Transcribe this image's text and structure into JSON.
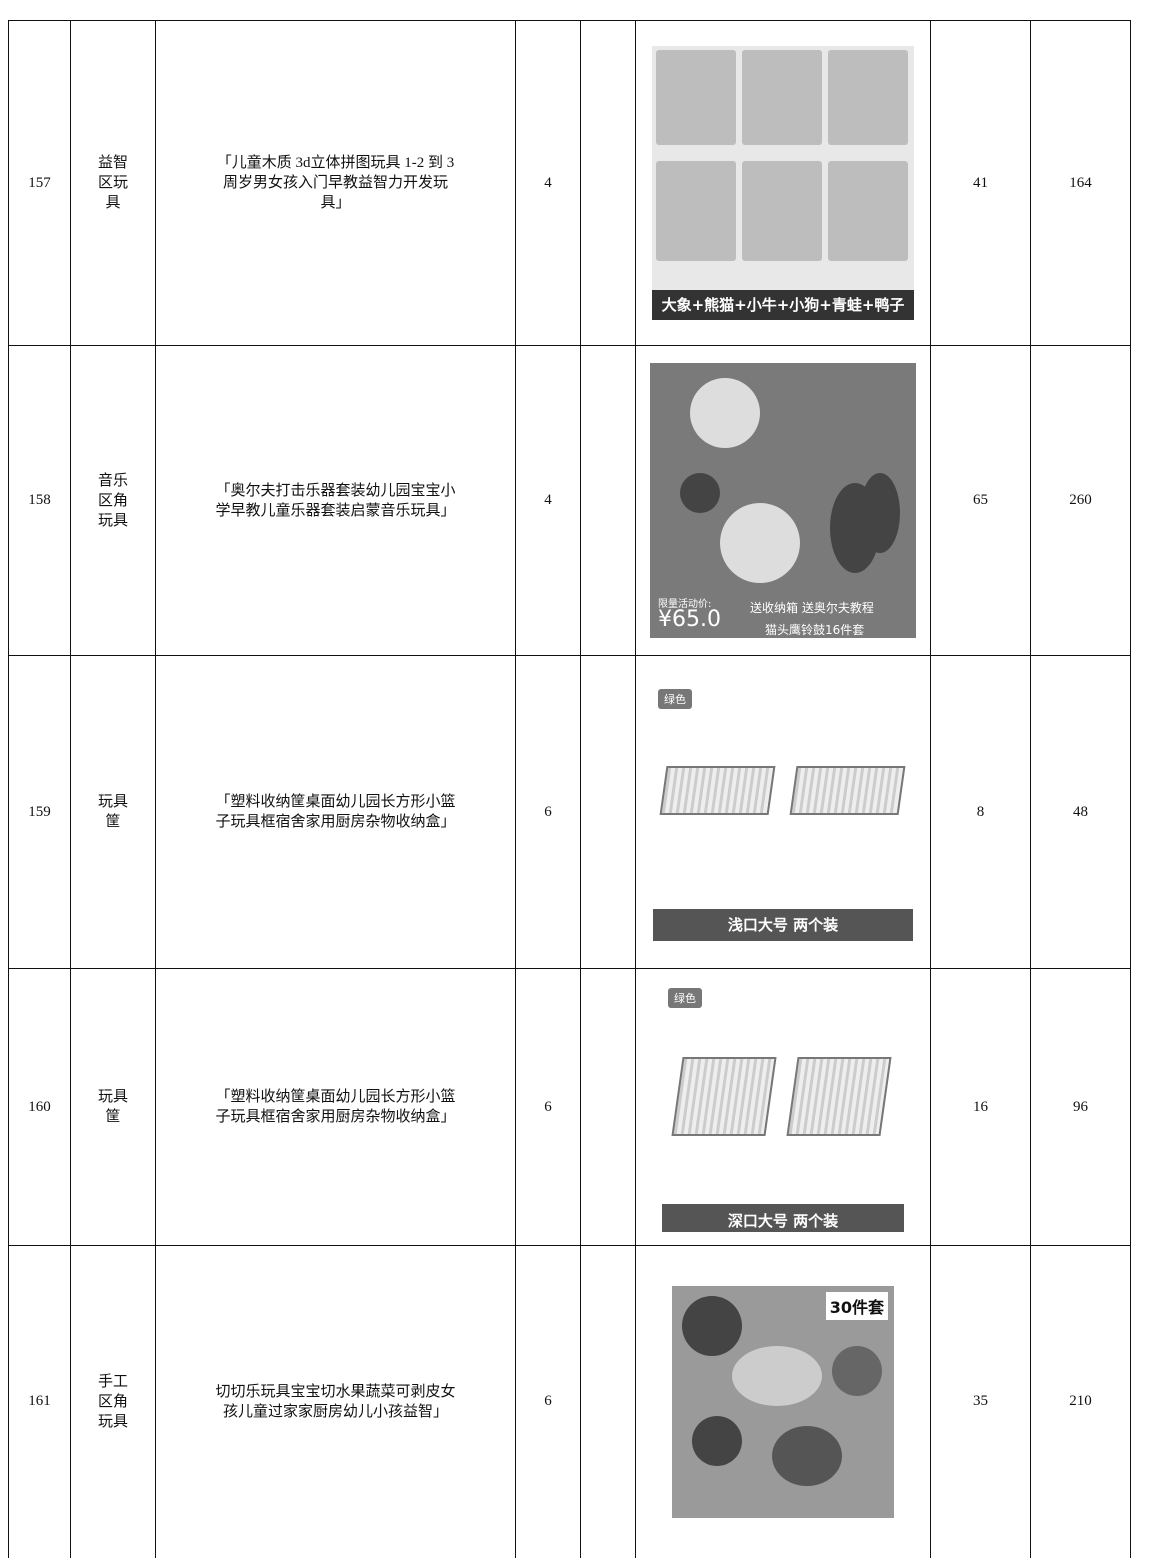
{
  "table": {
    "rows": [
      {
        "no": 157,
        "category": "益智区玩具",
        "description": "「儿童木质 3d立体拼图玩具 1-2 到 3 周岁男女孩入门早教益智力开发玩具」",
        "quantity": 4,
        "image_text": [
          "大象+熊猫+小牛+小狗+青蛙+鸭子"
        ],
        "unit_price": 41,
        "total": 164
      },
      {
        "no": 158,
        "category": "音乐区角玩具",
        "description": "「奥尔夫打击乐器套装幼儿园宝宝小学早教儿童乐器套装启蒙音乐玩具」",
        "quantity": 4,
        "image_text": [
          "限量活动价:",
          "¥65.0",
          "送收纳箱 送奥尔夫教程",
          "猫头鹰铃鼓16件套"
        ],
        "unit_price": 65,
        "total": 260
      },
      {
        "no": 159,
        "category": "玩具筐",
        "description": "「塑料收纳筐桌面幼儿园长方形小篮子玩具框宿舍家用厨房杂物收纳盒」",
        "quantity": 6,
        "image_text": [
          "绿色",
          "浅口大号 两个装"
        ],
        "unit_price": 8,
        "total": 48
      },
      {
        "no": 160,
        "category": "玩具筐",
        "description": "「塑料收纳筐桌面幼儿园长方形小篮子玩具框宿舍家用厨房杂物收纳盒」",
        "quantity": 6,
        "image_text": [
          "绿色",
          "深口大号 两个装"
        ],
        "unit_price": 16,
        "total": 96
      },
      {
        "no": 161,
        "category": "手工区角玩具",
        "description": "切切乐玩具宝宝切水果蔬菜可剥皮女孩儿童过家家厨房幼儿小孩益智」",
        "quantity": 6,
        "image_text": [
          "30件套"
        ],
        "unit_price": 35,
        "total": 210
      }
    ]
  }
}
